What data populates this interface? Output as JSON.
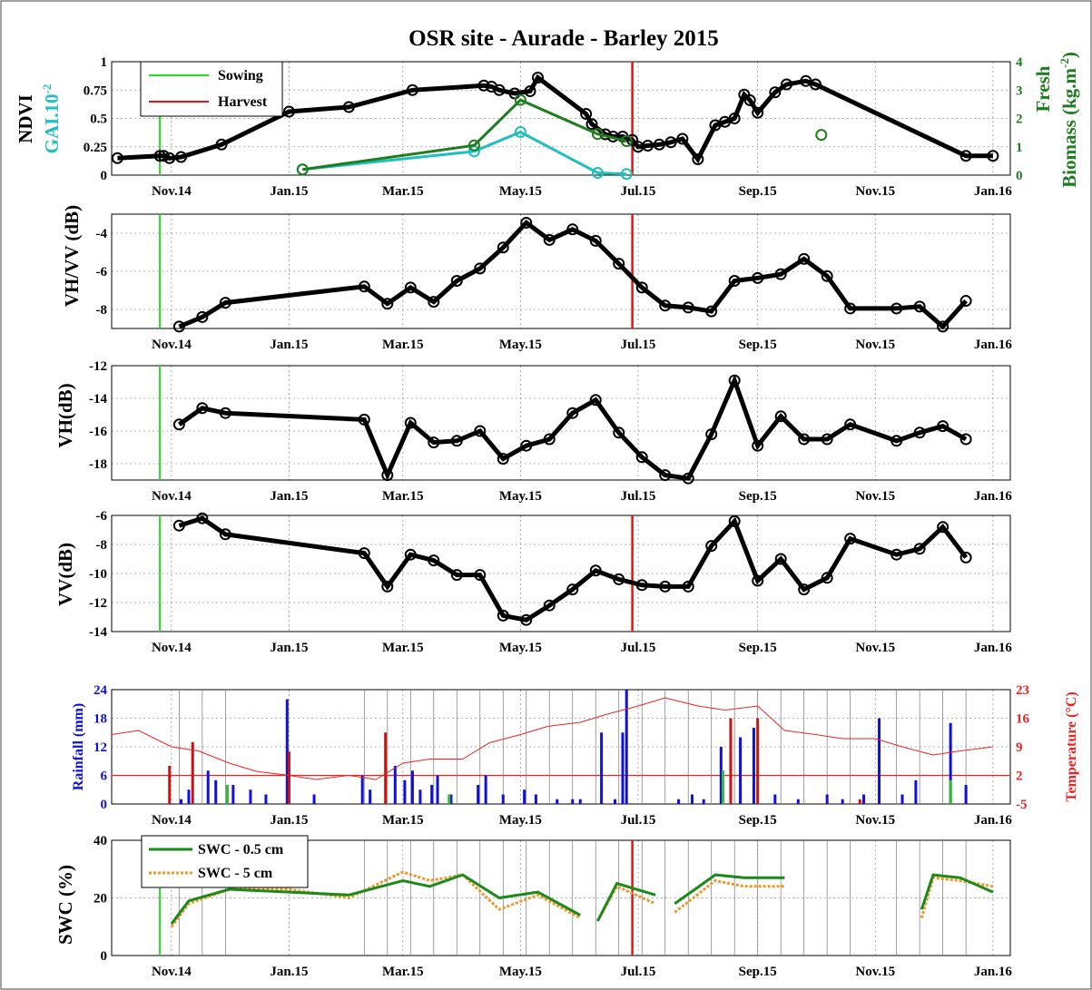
{
  "figure": {
    "title": "OSR site - Aurade - Barley 2015"
  },
  "colors": {
    "ndvi": "#000000",
    "gai": "#1fbfbf",
    "biomass": "#1e7d1e",
    "sowing": "#22dd22",
    "harvest": "#ee1111",
    "rain": "#1010dd",
    "rain_alt": "#cc1111",
    "rain_green": "#33bb33",
    "temperature": "#ee2222",
    "swc05": "#1a8a1a",
    "swc5": "#f0962a"
  },
  "x_axis": {
    "ticks": [
      "Nov.14",
      "Jan.15",
      "Mar.15",
      "May.15",
      "Jul.15",
      "Sep.15",
      "Nov.15",
      "Jan.16"
    ],
    "tick_dates": [
      "2014-11-01",
      "2015-01-01",
      "2015-03-01",
      "2015-05-01",
      "2015-07-01",
      "2015-09-01",
      "2015-11-01",
      "2016-01-01"
    ]
  },
  "legend": {
    "sowing": "Sowing",
    "harvest": "Harvest",
    "swc05": "SWC - 0.5 cm",
    "swc5": "SWC - 5 cm"
  },
  "chart_data": [
    {
      "type": "line",
      "panel": "ndvi",
      "ylabel": "NDVI",
      "ylabel2": "GAI.10",
      "ylabel2_sup": "-2",
      "ylim": [
        0,
        1
      ],
      "yticks": [
        "0",
        "0.25",
        "0.5",
        "0.75",
        "1"
      ],
      "y2label_a": "Fresh",
      "y2label_b": "Biomass (kg.m",
      "y2label_sup": "-2",
      "y2label_end": ")",
      "y2lim": [
        0,
        4
      ],
      "y2ticks": [
        "0",
        "1",
        "2",
        "3",
        "4"
      ],
      "sowing_date": "2014-10-26",
      "harvest_date": "2015-06-28",
      "series": [
        {
          "name": "NDVI",
          "axis": "left",
          "marker": "circle",
          "x": [
            "2014-10-04",
            "2014-10-26",
            "2014-10-28",
            "2014-10-31",
            "2014-11-06",
            "2014-11-27",
            "2015-01-01",
            "2015-02-01",
            "2015-03-06",
            "2015-04-12",
            "2015-04-16",
            "2015-04-20",
            "2015-04-28",
            "2015-05-06",
            "2015-05-10",
            "2015-06-04",
            "2015-06-07",
            "2015-06-14",
            "2015-06-18",
            "2015-06-23",
            "2015-06-28",
            "2015-07-01",
            "2015-07-06",
            "2015-07-12",
            "2015-07-18",
            "2015-07-24",
            "2015-08-01",
            "2015-08-10",
            "2015-08-15",
            "2015-08-20",
            "2015-08-25",
            "2015-08-28",
            "2015-09-01",
            "2015-09-10",
            "2015-09-16",
            "2015-09-26",
            "2015-10-01",
            "2015-12-18",
            "2016-01-01"
          ],
          "y": [
            0.15,
            0.17,
            0.17,
            0.15,
            0.16,
            0.27,
            0.56,
            0.6,
            0.75,
            0.79,
            0.78,
            0.75,
            0.72,
            0.74,
            0.86,
            0.54,
            0.45,
            0.36,
            0.34,
            0.34,
            0.31,
            0.25,
            0.26,
            0.27,
            0.29,
            0.32,
            0.14,
            0.44,
            0.47,
            0.5,
            0.71,
            0.66,
            0.55,
            0.73,
            0.8,
            0.83,
            0.8,
            0.17,
            0.17
          ]
        },
        {
          "name": "GAI",
          "axis": "left",
          "marker": "circle",
          "x": [
            "2015-01-08",
            "2015-04-07",
            "2015-05-01",
            "2015-06-10",
            "2015-06-25"
          ],
          "y": [
            0.05,
            0.21,
            0.38,
            0.02,
            0.01
          ]
        },
        {
          "name": "Fresh Biomass",
          "axis": "right",
          "marker": "circle",
          "x": [
            "2015-01-08",
            "2015-04-07",
            "2015-05-01",
            "2015-06-10",
            "2015-06-25"
          ],
          "y": [
            0.2,
            1.05,
            2.65,
            1.45,
            1.2
          ]
        },
        {
          "name": "Fresh Biomass (point)",
          "axis": "right",
          "marker": "circle",
          "line": false,
          "x": [
            "2015-10-04"
          ],
          "y": [
            1.42
          ]
        }
      ]
    },
    {
      "type": "line",
      "panel": "vhvv",
      "ylabel": "VH/VV (dB)",
      "ylim": [
        -9,
        -3
      ],
      "yticks": [
        "-8",
        "-6",
        "-4"
      ],
      "series": [
        {
          "name": "VH/VV",
          "marker": "circle",
          "x": [
            "2014-11-05",
            "2014-11-17",
            "2014-11-29",
            "2015-02-09",
            "2015-02-21",
            "2015-03-05",
            "2015-03-17",
            "2015-03-29",
            "2015-04-10",
            "2015-04-22",
            "2015-05-04",
            "2015-05-16",
            "2015-05-28",
            "2015-06-09",
            "2015-06-21",
            "2015-07-03",
            "2015-07-15",
            "2015-07-27",
            "2015-08-08",
            "2015-08-20",
            "2015-09-01",
            "2015-09-13",
            "2015-09-25",
            "2015-10-07",
            "2015-10-19",
            "2015-11-12",
            "2015-11-24",
            "2015-12-06",
            "2015-12-18"
          ],
          "y": [
            -8.9,
            -8.4,
            -7.65,
            -6.8,
            -7.7,
            -6.85,
            -7.6,
            -6.5,
            -5.85,
            -4.75,
            -3.45,
            -4.35,
            -3.8,
            -4.4,
            -5.6,
            -6.85,
            -7.8,
            -7.9,
            -8.1,
            -6.5,
            -6.35,
            -6.15,
            -5.35,
            -6.25,
            -7.95,
            -7.95,
            -7.85,
            -8.9,
            -7.55
          ]
        }
      ]
    },
    {
      "type": "line",
      "panel": "vh",
      "ylabel": "VH(dB)",
      "ylim": [
        -19,
        -12
      ],
      "yticks": [
        "-18",
        "-16",
        "-14",
        "-12"
      ],
      "series": [
        {
          "name": "VH",
          "marker": "circle",
          "x": [
            "2014-11-05",
            "2014-11-17",
            "2014-11-29",
            "2015-02-09",
            "2015-02-21",
            "2015-03-05",
            "2015-03-17",
            "2015-03-29",
            "2015-04-10",
            "2015-04-22",
            "2015-05-04",
            "2015-05-16",
            "2015-05-28",
            "2015-06-09",
            "2015-06-21",
            "2015-07-03",
            "2015-07-15",
            "2015-07-27",
            "2015-08-08",
            "2015-08-20",
            "2015-09-01",
            "2015-09-13",
            "2015-09-25",
            "2015-10-07",
            "2015-10-19",
            "2015-11-12",
            "2015-11-24",
            "2015-12-06",
            "2015-12-18"
          ],
          "y": [
            -15.6,
            -14.6,
            -14.9,
            -15.3,
            -18.7,
            -15.5,
            -16.7,
            -16.6,
            -16.0,
            -17.7,
            -16.9,
            -16.5,
            -14.9,
            -14.1,
            -16.1,
            -17.6,
            -18.7,
            -18.9,
            -16.2,
            -12.9,
            -16.9,
            -15.1,
            -16.5,
            -16.5,
            -15.6,
            -16.6,
            -16.1,
            -15.7,
            -16.5
          ]
        }
      ]
    },
    {
      "type": "line",
      "panel": "vv",
      "ylabel": "VV(dB)",
      "ylim": [
        -14,
        -6
      ],
      "yticks": [
        "-14",
        "-12",
        "-10",
        "-8",
        "-6"
      ],
      "series": [
        {
          "name": "VV",
          "marker": "circle",
          "x": [
            "2014-11-05",
            "2014-11-17",
            "2014-11-29",
            "2015-02-09",
            "2015-02-21",
            "2015-03-05",
            "2015-03-17",
            "2015-03-29",
            "2015-04-10",
            "2015-04-22",
            "2015-05-04",
            "2015-05-16",
            "2015-05-28",
            "2015-06-09",
            "2015-06-21",
            "2015-07-03",
            "2015-07-15",
            "2015-07-27",
            "2015-08-08",
            "2015-08-20",
            "2015-09-01",
            "2015-09-13",
            "2015-09-25",
            "2015-10-07",
            "2015-10-19",
            "2015-11-12",
            "2015-11-24",
            "2015-12-06",
            "2015-12-18"
          ],
          "y": [
            -6.7,
            -6.2,
            -7.3,
            -8.6,
            -10.9,
            -8.7,
            -9.1,
            -10.1,
            -10.1,
            -12.9,
            -13.2,
            -12.2,
            -11.1,
            -9.8,
            -10.4,
            -10.8,
            -10.9,
            -10.9,
            -8.1,
            -6.4,
            -10.5,
            -9.0,
            -11.1,
            -10.3,
            -7.6,
            -8.7,
            -8.3,
            -6.8,
            -8.9
          ]
        }
      ]
    },
    {
      "type": "bar",
      "panel": "rain",
      "ylabel": "Rainfall (mm)",
      "ylim": [
        0,
        24
      ],
      "yticks": [
        "0",
        "6",
        "12",
        "18",
        "24"
      ],
      "y2label": "Temperature (°C)",
      "y2lim": [
        -5,
        23
      ],
      "y2ticks": [
        "-5",
        "2",
        "9",
        "16",
        "23"
      ],
      "temperature_threshold": 2,
      "series": [
        {
          "name": "Rainfall",
          "x": [
            "2014-11-06",
            "2014-11-10",
            "2014-11-20",
            "2014-11-24",
            "2014-12-03",
            "2014-12-12",
            "2014-12-20",
            "2014-12-31",
            "2015-01-14",
            "2015-02-08",
            "2015-02-12",
            "2015-02-25",
            "2015-03-02",
            "2015-03-06",
            "2015-03-10",
            "2015-03-16",
            "2015-03-19",
            "2015-03-26",
            "2015-04-09",
            "2015-04-13",
            "2015-04-22",
            "2015-05-03",
            "2015-05-09",
            "2015-05-20",
            "2015-05-28",
            "2015-06-01",
            "2015-06-12",
            "2015-06-19",
            "2015-06-23",
            "2015-06-25",
            "2015-07-22",
            "2015-07-29",
            "2015-08-04",
            "2015-08-13",
            "2015-08-23",
            "2015-08-30",
            "2015-09-10",
            "2015-09-22",
            "2015-10-07",
            "2015-10-15",
            "2015-10-26",
            "2015-11-03",
            "2015-11-15",
            "2015-11-22",
            "2015-12-10",
            "2015-12-18"
          ],
          "y": [
            1,
            3,
            7,
            5,
            4,
            3,
            2,
            22,
            2,
            6,
            3,
            8,
            5,
            7,
            3,
            4,
            6,
            2,
            4,
            6,
            2,
            3,
            2,
            1,
            1,
            1,
            15,
            1,
            15,
            24,
            1,
            2,
            1,
            12,
            14,
            16,
            2,
            1,
            2,
            1,
            2,
            18,
            2,
            5,
            17,
            4
          ]
        },
        {
          "name": "Rainfall (red)",
          "x": [
            "2014-10-31",
            "2014-11-12",
            "2015-01-01",
            "2015-02-20",
            "2015-08-18",
            "2015-09-01",
            "2015-10-24"
          ],
          "y": [
            8,
            13,
            11,
            15,
            18,
            18,
            1
          ]
        },
        {
          "name": "Rainfall (green)",
          "x": [
            "2014-11-30",
            "2015-03-25",
            "2015-08-14",
            "2015-12-10"
          ],
          "y": [
            4,
            2,
            7,
            5
          ]
        },
        {
          "name": "Temperature",
          "axis": "right",
          "type": "line",
          "x": [
            "2014-10-01",
            "2014-10-15",
            "2014-11-01",
            "2014-11-15",
            "2014-12-01",
            "2014-12-15",
            "2015-01-01",
            "2015-01-15",
            "2015-02-01",
            "2015-02-15",
            "2015-03-01",
            "2015-03-15",
            "2015-04-01",
            "2015-04-15",
            "2015-05-01",
            "2015-05-15",
            "2015-06-01",
            "2015-06-15",
            "2015-07-01",
            "2015-07-15",
            "2015-08-01",
            "2015-08-15",
            "2015-09-01",
            "2015-09-15",
            "2015-10-01",
            "2015-10-15",
            "2015-11-01",
            "2015-11-15",
            "2015-12-01",
            "2015-12-15",
            "2016-01-01"
          ],
          "y": [
            12,
            13,
            9,
            8,
            5,
            3,
            2,
            1,
            2,
            1,
            5,
            6,
            6,
            10,
            12,
            14,
            15,
            17,
            19,
            21,
            19,
            18,
            19,
            13,
            12,
            11,
            11,
            9,
            7,
            8,
            9
          ]
        }
      ]
    },
    {
      "type": "line",
      "panel": "swc",
      "ylabel": "SWC (%)",
      "ylim": [
        0,
        40
      ],
      "yticks": [
        "0",
        "20",
        "40"
      ],
      "series": [
        {
          "name": "SWC - 0.5 cm",
          "x": [
            "2014-11-01",
            "2014-11-10",
            "2014-12-01",
            "2015-01-01",
            "2015-02-01",
            "2015-03-01",
            "2015-03-15",
            "2015-04-01",
            "2015-04-20",
            "2015-05-10",
            "2015-06-01",
            "2015-06-10",
            "2015-06-20",
            "2015-07-10",
            "2015-07-20",
            "2015-08-10",
            "2015-08-25",
            "2015-09-15",
            "2015-11-25",
            "2015-12-01",
            "2015-12-15",
            "2016-01-01"
          ],
          "y": [
            11,
            19,
            23,
            22,
            21,
            26,
            24,
            28,
            20,
            22,
            14,
            12,
            25,
            21,
            18,
            28,
            27,
            27,
            16,
            28,
            27,
            22
          ]
        },
        {
          "name": "SWC - 5 cm",
          "x": [
            "2014-11-01",
            "2014-11-10",
            "2014-12-01",
            "2015-01-01",
            "2015-02-01",
            "2015-03-01",
            "2015-03-15",
            "2015-04-01",
            "2015-04-20",
            "2015-05-10",
            "2015-06-01",
            "2015-06-10",
            "2015-06-20",
            "2015-07-10",
            "2015-07-20",
            "2015-08-10",
            "2015-08-25",
            "2015-09-15",
            "2015-11-25",
            "2015-12-01",
            "2015-12-15",
            "2016-01-01"
          ],
          "y": [
            10,
            18,
            23,
            23,
            20,
            29,
            26,
            28,
            16,
            21,
            13,
            12,
            24,
            18,
            15,
            26,
            24,
            24,
            13,
            27,
            26,
            24
          ]
        }
      ]
    }
  ]
}
